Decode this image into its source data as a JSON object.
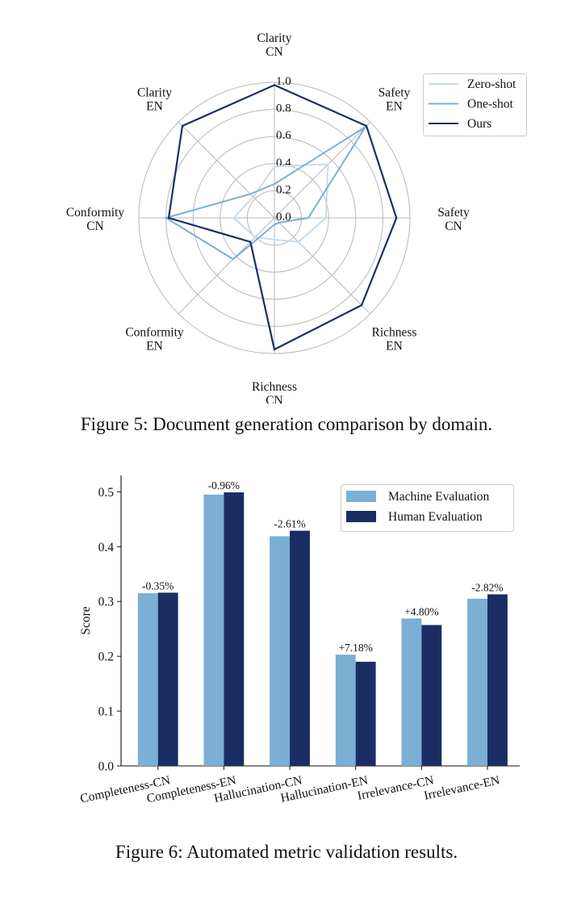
{
  "figure5": {
    "caption": "Figure 5: Document generation comparison by domain.",
    "chart_data": {
      "type": "radar",
      "axes": [
        {
          "line1": "Clarity",
          "line2": "CN"
        },
        {
          "line1": "Safety",
          "line2": "EN"
        },
        {
          "line1": "Safety",
          "line2": "CN"
        },
        {
          "line1": "Richness",
          "line2": "EN"
        },
        {
          "line1": "Richness",
          "line2": "CN"
        },
        {
          "line1": "Conformity",
          "line2": "EN"
        },
        {
          "line1": "Conformity",
          "line2": "CN"
        },
        {
          "line1": "Clarity",
          "line2": "EN"
        }
      ],
      "radial_ticks": [
        "0.0",
        "0.2",
        "0.4",
        "0.6",
        "0.8",
        "1.0"
      ],
      "rlim": [
        0,
        1.0
      ],
      "legend_position": "top-right",
      "series": [
        {
          "name": "Zero-shot",
          "color": "#c6dbef",
          "values": [
            0.38,
            0.56,
            0.38,
            0.25,
            0.16,
            0.2,
            0.3,
            0.22
          ]
        },
        {
          "name": "One-shot",
          "color": "#7bafd4",
          "values": [
            0.25,
            0.95,
            0.25,
            0.05,
            0.05,
            0.43,
            0.8,
            0.25
          ]
        },
        {
          "name": "Ours",
          "color": "#1a2e64",
          "values": [
            0.98,
            0.96,
            0.9,
            0.91,
            0.97,
            0.25,
            0.78,
            0.96
          ]
        }
      ]
    }
  },
  "figure6": {
    "caption": "Figure 6: Automated metric validation results.",
    "chart_data": {
      "type": "bar",
      "ylabel": "Score",
      "ylim": [
        0,
        0.53
      ],
      "yticks": [
        "0.0",
        "0.1",
        "0.2",
        "0.3",
        "0.4",
        "0.5"
      ],
      "categories": [
        "Completeness-CN",
        "Completeness-EN",
        "Hallucination-CN",
        "Hallucination-EN",
        "Irrelevance-CN",
        "Irrelevance-EN"
      ],
      "annotations": [
        "-0.35%",
        "-0.96%",
        "-2.61%",
        "+7.18%",
        "+4.80%",
        "-2.82%"
      ],
      "legend_position": "top-right",
      "series": [
        {
          "name": "Machine Evaluation",
          "color": "#7bafd4",
          "values": [
            0.315,
            0.495,
            0.419,
            0.203,
            0.269,
            0.305
          ]
        },
        {
          "name": "Human Evaluation",
          "color": "#1a2e64",
          "values": [
            0.316,
            0.499,
            0.429,
            0.19,
            0.257,
            0.313
          ]
        }
      ]
    }
  }
}
